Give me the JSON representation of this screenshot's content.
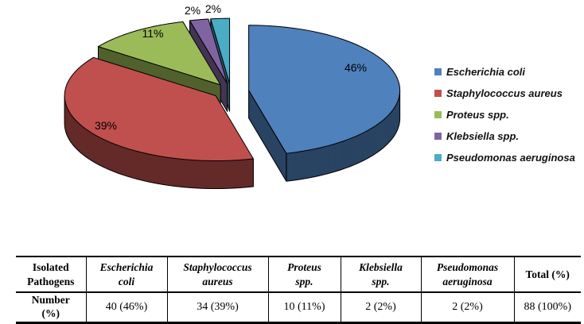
{
  "chart_data": {
    "type": "pie",
    "style": "3d-exploded",
    "direction": "clockwise",
    "start_angle_deg": 0,
    "legend_position": "right",
    "categories": [
      "Escherichia coli",
      "Staphylococcus aureus",
      "Proteus spp.",
      "Klebsiella spp.",
      "Pseudomonas aeruginosa"
    ],
    "values": [
      46,
      39,
      11,
      2,
      2
    ],
    "counts": [
      40,
      34,
      10,
      2,
      2
    ],
    "total_count": 88,
    "slice_labels": [
      "46%",
      "39%",
      "11%",
      "2%",
      "2%"
    ],
    "colors": [
      "#4f81bd",
      "#c0504d",
      "#9bbb59",
      "#8064a2",
      "#4bacc6"
    ]
  },
  "legend": {
    "items": [
      {
        "label": "Escherichia coli",
        "color": "#4f81bd"
      },
      {
        "label": "Staphylococcus aureus",
        "color": "#c0504d"
      },
      {
        "label": "Proteus spp.",
        "color": "#9bbb59"
      },
      {
        "label": "Klebsiella spp.",
        "color": "#8064a2"
      },
      {
        "label": "Pseudomonas aeruginosa",
        "color": "#4bacc6"
      }
    ]
  },
  "table": {
    "header_cells": [
      "Isolated\nPathogens",
      "Escherichia\ncoli",
      "Staphylococcus\naureus",
      "Proteus\nspp.",
      "Klebsiella\nspp.",
      "Pseudomonas\naeruginosa",
      "Total (%)"
    ],
    "rows": [
      [
        "Number\n(%)",
        "40 (46%)",
        "34 (39%)",
        "10 (11%)",
        "2 (2%)",
        "2 (2%)",
        "88 (100%)"
      ]
    ]
  }
}
